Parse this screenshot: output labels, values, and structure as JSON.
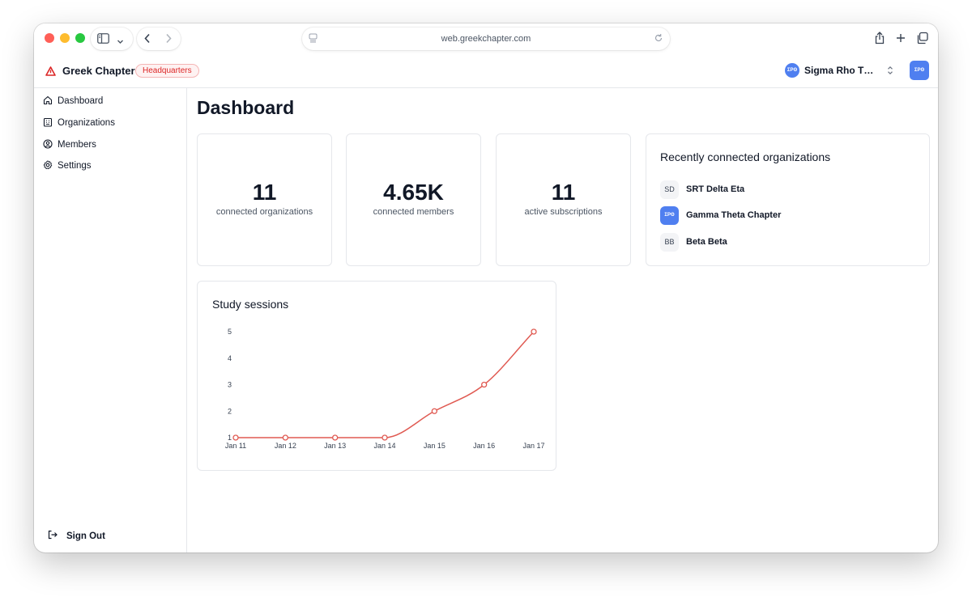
{
  "browser": {
    "url": "web.greekchapter.com",
    "icons": [
      "sidebar-toggle-icon",
      "chevron-down-icon",
      "back-icon",
      "forward-icon",
      "page-settings-icon",
      "reload-icon",
      "share-icon",
      "new-tab-icon",
      "tabs-overview-icon"
    ]
  },
  "header": {
    "brand": "Greek Chapter",
    "badge": "Headquarters",
    "org_switcher": {
      "avatar_text": "ΣΡΘ",
      "name": "Sigma Rho Thet..."
    },
    "user_avatar_text": "ΣΡΘ"
  },
  "sidebar": {
    "items": [
      {
        "label": "Dashboard",
        "icon": "home-icon"
      },
      {
        "label": "Organizations",
        "icon": "building-icon"
      },
      {
        "label": "Members",
        "icon": "user-circle-icon"
      },
      {
        "label": "Settings",
        "icon": "gear-icon"
      }
    ],
    "sign_out": "Sign Out"
  },
  "main": {
    "title": "Dashboard",
    "stats": [
      {
        "value": "11",
        "label": "connected organizations"
      },
      {
        "value": "4.65K",
        "label": "connected members"
      },
      {
        "value": "11",
        "label": "active subscriptions"
      }
    ],
    "recent": {
      "title": "Recently connected organizations",
      "items": [
        {
          "badge": "SD",
          "name": "SRT Delta Eta"
        },
        {
          "badge": "ΣΡΘ",
          "name": "Gamma Theta Chapter"
        },
        {
          "badge": "BB",
          "name": "Beta Beta"
        }
      ]
    }
  },
  "colors": {
    "accent": "#dc2626",
    "line": "#e05a52",
    "avatar": "#4f7ff0"
  },
  "chart_data": {
    "type": "line",
    "title": "Study sessions",
    "categories": [
      "Jan 11",
      "Jan 12",
      "Jan 13",
      "Jan 14",
      "Jan 15",
      "Jan 16",
      "Jan 17"
    ],
    "values": [
      1,
      1,
      1,
      1,
      2,
      3,
      5
    ],
    "yticks": [
      1,
      2,
      3,
      4,
      5
    ],
    "ylim": [
      1,
      5
    ],
    "grid": false,
    "legend": "none"
  }
}
